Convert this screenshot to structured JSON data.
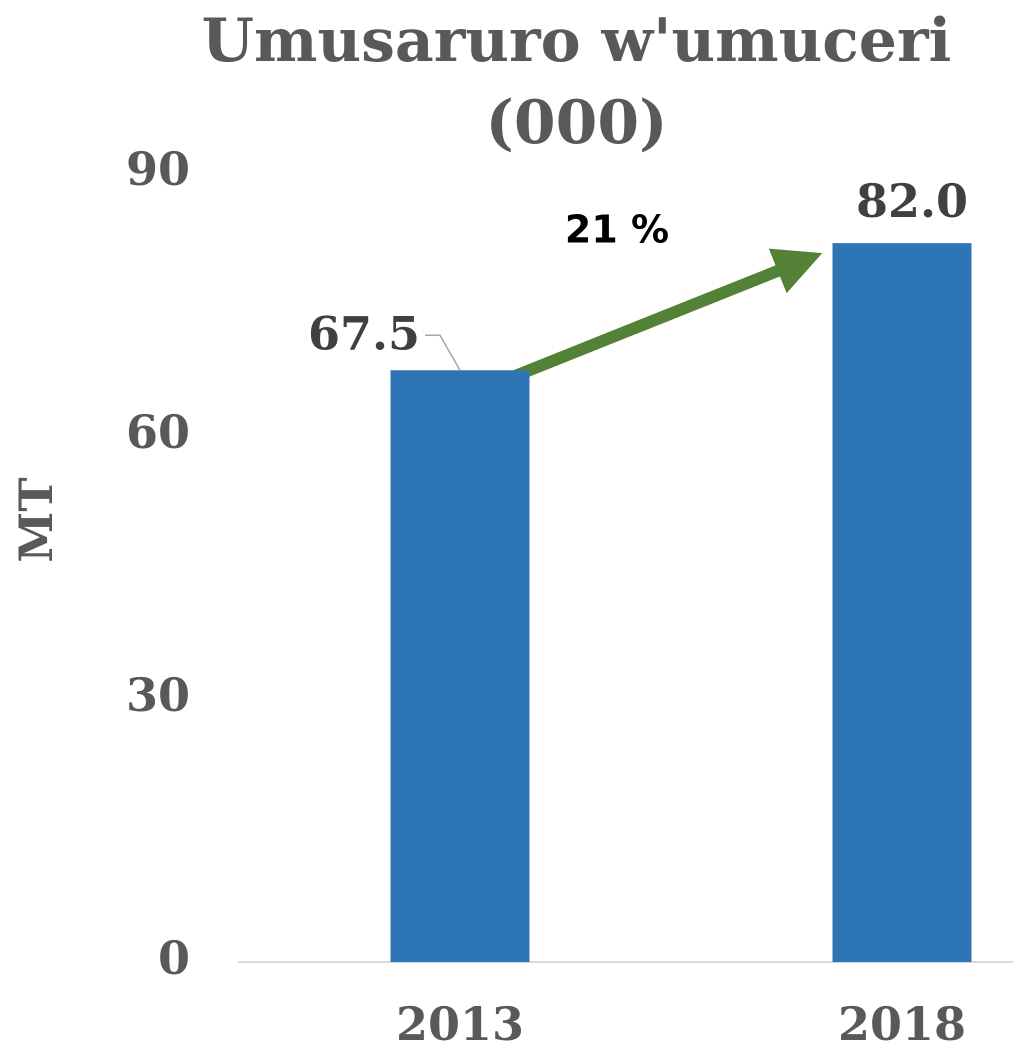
{
  "chart_data": {
    "type": "bar",
    "title": "Umusaruro w'umuceri (000)",
    "y_label": "MT",
    "categories": [
      "2013",
      "2018"
    ],
    "values": [
      67.5,
      82.0
    ],
    "value_labels": [
      "67.5",
      "82.0"
    ],
    "color": "#2e75b6",
    "ylim": [
      0,
      90
    ],
    "yticks": [
      0,
      30,
      60,
      90
    ],
    "grid": false,
    "annotation": "21 %"
  }
}
